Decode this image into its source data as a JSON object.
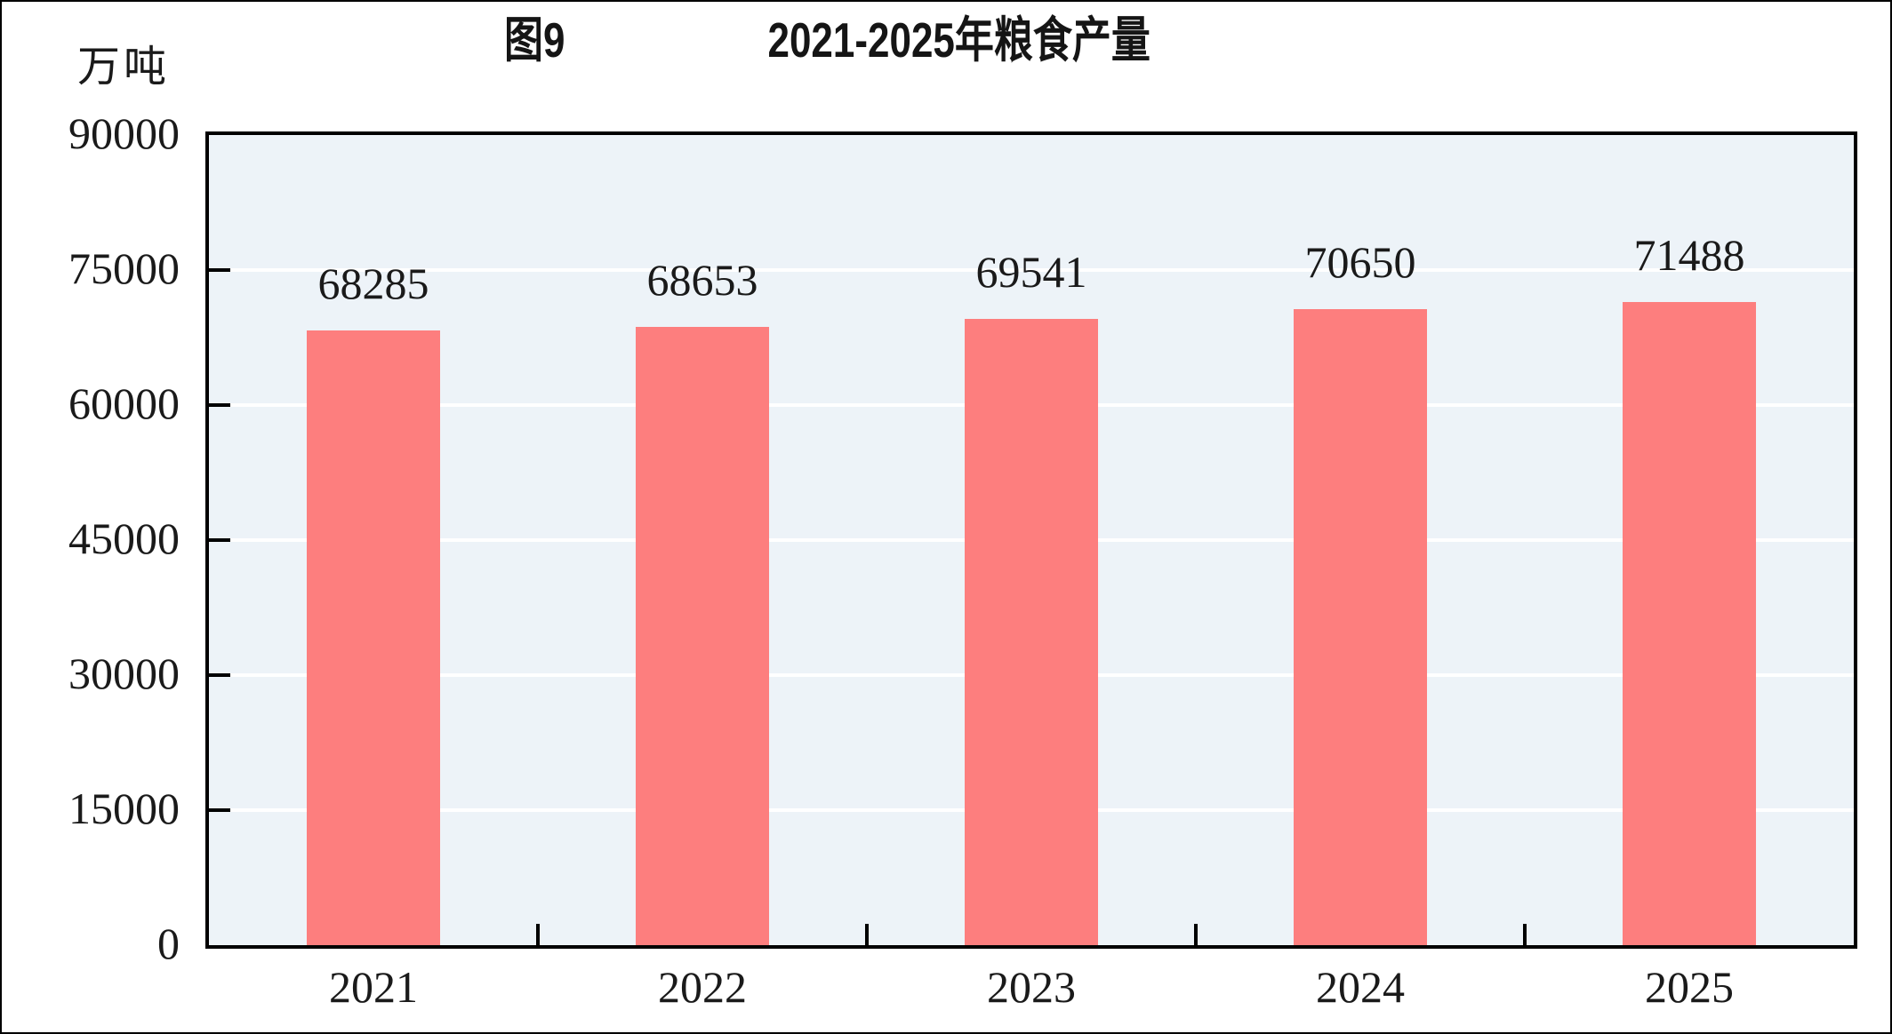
{
  "chart_data": {
    "type": "bar",
    "title": "图9  2021-2025年粮食产量",
    "title_prefix": "图9",
    "title_main": "2021-2025年粮食产量",
    "unit": "万吨",
    "xlabel": "",
    "ylabel": "万吨",
    "categories": [
      "2021",
      "2022",
      "2023",
      "2024",
      "2025"
    ],
    "values": [
      68285,
      68653,
      69541,
      70650,
      71488
    ],
    "value_labels": [
      "68285",
      "68653",
      "69541",
      "70650",
      "71488"
    ],
    "ylim": [
      0,
      90000
    ],
    "ytick_step": 15000,
    "yticks": [
      0,
      15000,
      30000,
      45000,
      60000,
      75000,
      90000
    ],
    "grid": true,
    "legend": false,
    "bar_color": "#fd7e7e",
    "plot_bg_color": "#edf3f8",
    "grid_color": "#ffffff",
    "axis_color": "#000000",
    "text_color": "#1a1a1a"
  }
}
